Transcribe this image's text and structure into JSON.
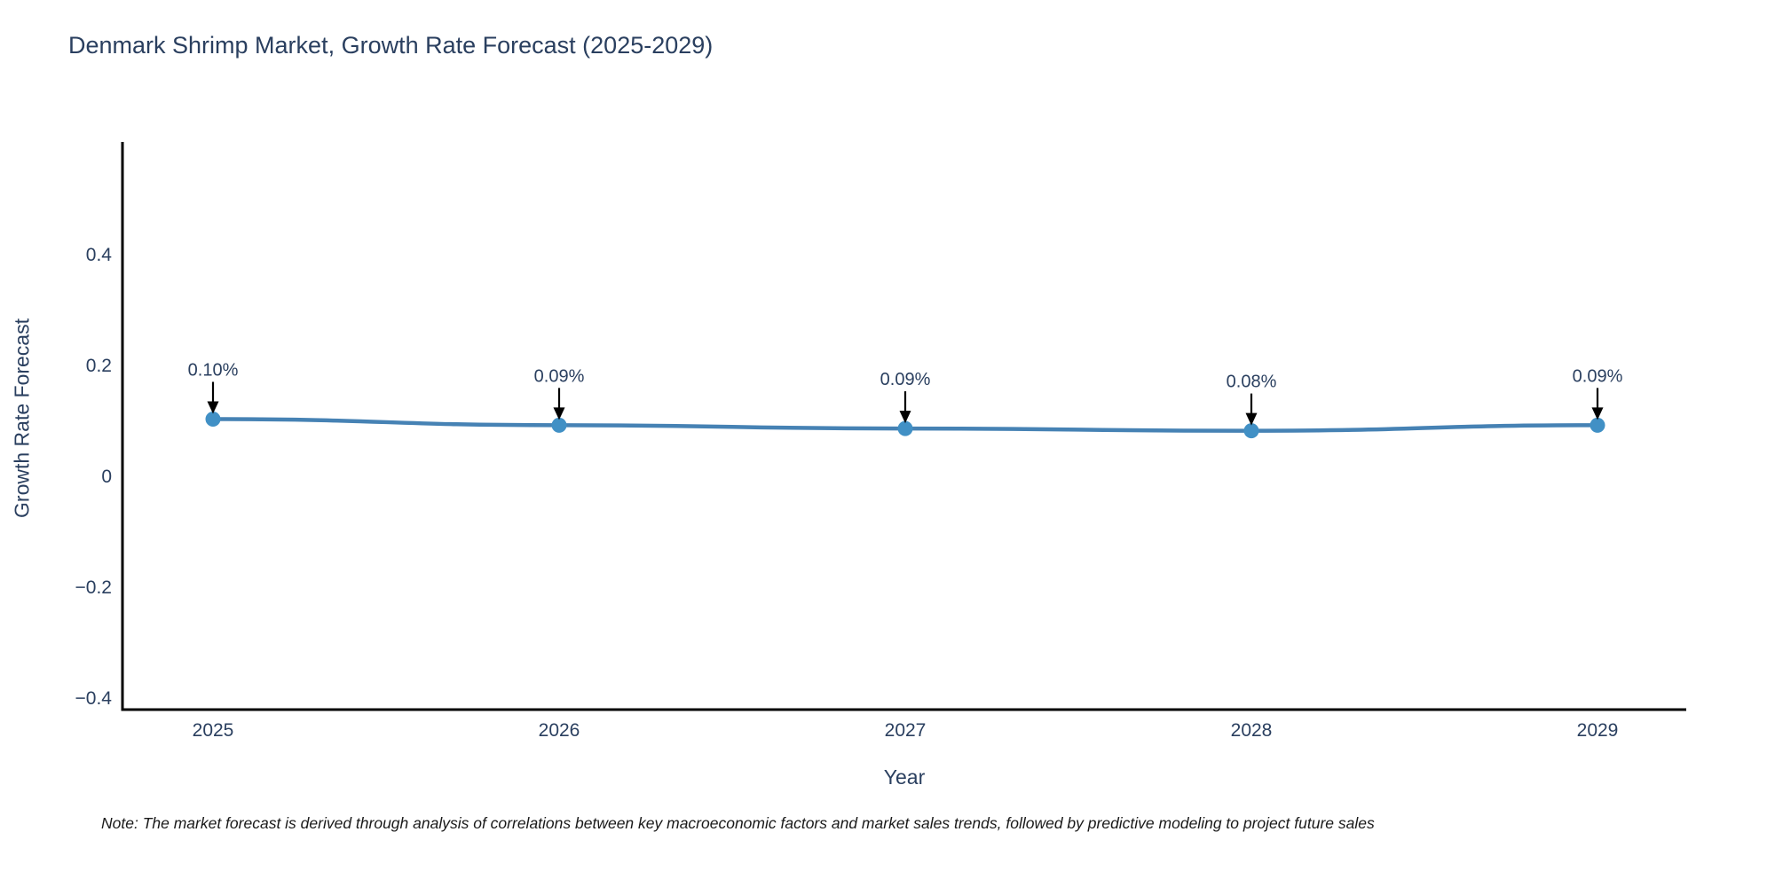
{
  "title": "Denmark Shrimp Market, Growth Rate Forecast (2025-2029)",
  "note": "Note: The market forecast is derived through analysis of correlations between key macroeconomic factors and market sales trends, followed by predictive modeling to project future sales",
  "colors": {
    "title_text": "#2a3f5f",
    "axis_text": "#2a3f5f",
    "axis_line": "#000000",
    "line": "#4682b4",
    "marker": "#4190c5",
    "annotation_arrow": "#000000",
    "note_text": "#1a1a1a",
    "background": "#ffffff"
  },
  "chart_data": {
    "type": "line",
    "title": "Denmark Shrimp Market, Growth Rate Forecast (2025-2029)",
    "xlabel": "Year",
    "ylabel": "Growth Rate Forecast",
    "x": [
      2025,
      2026,
      2027,
      2028,
      2029
    ],
    "x_tick_labels": [
      "2025",
      "2026",
      "2027",
      "2028",
      "2029"
    ],
    "series": [
      {
        "name": "Growth Rate Forecast",
        "values": [
          0.102,
          0.091,
          0.085,
          0.081,
          0.091
        ],
        "point_labels": [
          "0.10%",
          "0.09%",
          "0.09%",
          "0.08%",
          "0.09%"
        ]
      }
    ],
    "yticks": [
      -0.4,
      -0.2,
      0,
      0.2,
      0.4
    ],
    "ytick_labels": [
      "−0.4",
      "−0.2",
      "0",
      "0.2",
      "0.4"
    ],
    "ylim": [
      -0.422,
      0.602
    ],
    "grid": false,
    "legend_position": "none",
    "annotations_have_arrows": true
  }
}
